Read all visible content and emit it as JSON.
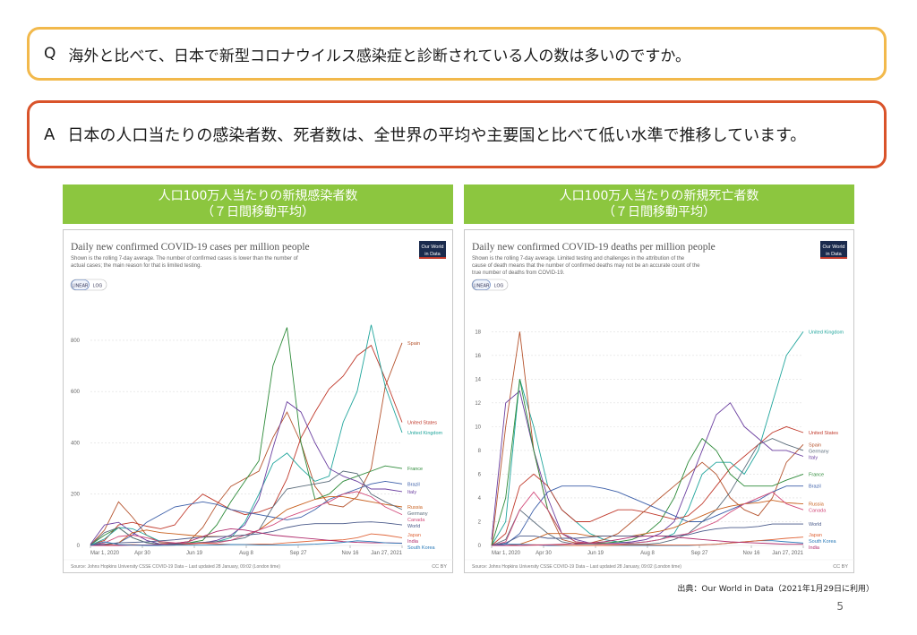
{
  "question": {
    "letter": "Q",
    "text": "海外と比べて、日本で新型コロナウイルス感染症と診断されている人の数は多いのですか。"
  },
  "answer": {
    "letter": "A",
    "text": "日本の人口当たりの感染者数、死者数は、全世界の平均や主要国と比べて低い水準で推移しています。"
  },
  "left_header": {
    "line1": "人口100万人当たりの新規感染者数",
    "line2": "（７日間移動平均）"
  },
  "right_header": {
    "line1": "人口100万人当たりの新規死亡者数",
    "line2": "（７日間移動平均）"
  },
  "source_note": "出典：Our World in Data（2021年1月29日に利用）",
  "page_number": "5",
  "colors": {
    "Spain": "#b5532d",
    "United States": "#c0392b",
    "United Kingdom": "#20a59c",
    "France": "#2e8b3a",
    "Brazil": "#3b5ea8",
    "Italy": "#6b3fa0",
    "Russia": "#c8601e",
    "Germany": "#5a6b7a",
    "Canada": "#d24a7a",
    "World": "#4a5a8a",
    "Japan": "#e0663a",
    "India": "#b02a6b",
    "South Korea": "#2a7ab8"
  },
  "chart_data": [
    {
      "type": "line",
      "title": "Daily new confirmed COVID-19 cases per million people",
      "subtitle": "Shown is the rolling 7-day average. The number of confirmed cases is lower than the number of actual cases; the main reason for that is limited testing.",
      "logo": "Our World in Data",
      "toggle": [
        "LINEAR",
        "LOG"
      ],
      "x_ticks": [
        "Mar 1, 2020",
        "Apr 30",
        "Jun 19",
        "Aug 8",
        "Sep 27",
        "Nov 16",
        "Jan 27, 2021"
      ],
      "y_ticks": [
        "0",
        "200",
        "400",
        "600",
        "800"
      ],
      "ylim": [
        0,
        880
      ],
      "footer": "Source: Johns Hopkins University CSSE COVID-19 Data – Last updated 28 January, 09:02 (London time)",
      "license": "CC BY",
      "x": [
        0,
        15,
        30,
        45,
        60,
        75,
        90,
        105,
        120,
        135,
        150,
        165,
        180,
        195,
        210,
        225,
        240,
        255,
        270,
        285,
        300,
        315,
        333
      ],
      "series": [
        {
          "name": "Spain",
          "values": [
            2,
            60,
            170,
            110,
            40,
            10,
            8,
            15,
            70,
            160,
            230,
            260,
            290,
            420,
            520,
            400,
            230,
            160,
            150,
            190,
            300,
            620,
            790
          ]
        },
        {
          "name": "United States",
          "values": [
            1,
            20,
            80,
            90,
            75,
            65,
            80,
            150,
            200,
            170,
            140,
            120,
            130,
            150,
            260,
            420,
            520,
            610,
            660,
            740,
            780,
            650,
            480
          ]
        },
        {
          "name": "United Kingdom",
          "values": [
            1,
            25,
            70,
            65,
            40,
            15,
            8,
            10,
            12,
            15,
            30,
            90,
            200,
            320,
            360,
            300,
            250,
            270,
            480,
            600,
            860,
            620,
            440
          ]
        },
        {
          "name": "France",
          "values": [
            2,
            40,
            70,
            30,
            10,
            5,
            5,
            10,
            20,
            80,
            170,
            250,
            330,
            700,
            850,
            400,
            180,
            200,
            250,
            270,
            290,
            310,
            300
          ]
        },
        {
          "name": "Brazil",
          "values": [
            0,
            2,
            10,
            40,
            90,
            120,
            150,
            160,
            170,
            160,
            140,
            130,
            120,
            110,
            100,
            110,
            140,
            180,
            200,
            220,
            240,
            250,
            240
          ]
        },
        {
          "name": "Italy",
          "values": [
            5,
            80,
            90,
            50,
            20,
            5,
            3,
            5,
            10,
            20,
            40,
            80,
            180,
            380,
            560,
            520,
            400,
            300,
            270,
            250,
            220,
            220,
            210
          ]
        },
        {
          "name": "Russia",
          "values": [
            0,
            1,
            10,
            50,
            60,
            50,
            45,
            40,
            35,
            35,
            35,
            40,
            60,
            100,
            140,
            160,
            180,
            190,
            190,
            180,
            170,
            160,
            150
          ]
        },
        {
          "name": "Germany",
          "values": [
            1,
            50,
            70,
            30,
            10,
            5,
            5,
            8,
            12,
            15,
            20,
            30,
            60,
            150,
            220,
            230,
            240,
            250,
            290,
            280,
            200,
            170,
            140
          ]
        },
        {
          "name": "Canada",
          "values": [
            0,
            10,
            35,
            40,
            30,
            15,
            10,
            8,
            10,
            10,
            20,
            40,
            60,
            80,
            110,
            130,
            150,
            170,
            200,
            210,
            190,
            150,
            120
          ]
        },
        {
          "name": "World",
          "values": [
            1,
            5,
            10,
            12,
            14,
            18,
            22,
            28,
            32,
            34,
            36,
            40,
            45,
            55,
            70,
            80,
            85,
            85,
            85,
            90,
            92,
            88,
            80
          ]
        },
        {
          "name": "Japan",
          "values": [
            0,
            0,
            2,
            3,
            1,
            0,
            1,
            5,
            8,
            6,
            4,
            4,
            5,
            6,
            10,
            14,
            18,
            20,
            22,
            30,
            45,
            40,
            30
          ]
        },
        {
          "name": "India",
          "values": [
            0,
            0,
            0,
            1,
            2,
            4,
            8,
            15,
            35,
            55,
            65,
            60,
            50,
            40,
            35,
            30,
            25,
            20,
            15,
            12,
            10,
            10,
            9
          ]
        },
        {
          "name": "South Korea",
          "values": [
            0,
            14,
            4,
            1,
            0,
            0,
            1,
            1,
            1,
            2,
            4,
            3,
            2,
            2,
            2,
            3,
            5,
            8,
            12,
            18,
            15,
            10,
            8
          ]
        }
      ]
    },
    {
      "type": "line",
      "title": "Daily new confirmed COVID-19 deaths per million people",
      "subtitle": "Shown is the rolling 7-day average. Limited testing and challenges in the attribution of the cause of death means that the number of confirmed deaths may not be an accurate count of the true number of deaths from COVID-19.",
      "logo": "Our World in Data",
      "toggle": [
        "LINEAR",
        "LOG"
      ],
      "x_ticks": [
        "Mar 1, 2020",
        "Apr 30",
        "Jun 19",
        "Aug 8",
        "Sep 27",
        "Nov 16",
        "Jan 27, 2021"
      ],
      "y_ticks": [
        "0",
        "2",
        "4",
        "6",
        "8",
        "10",
        "12",
        "14",
        "16",
        "18"
      ],
      "ylim": [
        0,
        19
      ],
      "footer": "Source: Johns Hopkins University CSSE COVID-19 Data – Last updated 28 January, 09:02 (London time)",
      "license": "CC BY",
      "x": [
        0,
        15,
        30,
        45,
        60,
        75,
        90,
        105,
        120,
        135,
        150,
        165,
        180,
        195,
        210,
        225,
        240,
        255,
        270,
        285,
        300,
        315,
        333
      ],
      "series": [
        {
          "name": "United Kingdom",
          "values": [
            0,
            2,
            14,
            10,
            5,
            3,
            2,
            1,
            0.5,
            0.3,
            0.2,
            0.3,
            0.5,
            1,
            3,
            6,
            7,
            7,
            6,
            8,
            12,
            16,
            18
          ]
        },
        {
          "name": "United States",
          "values": [
            0,
            1,
            5,
            6,
            5,
            3,
            2,
            2,
            2.5,
            3,
            3,
            2.8,
            2.5,
            2.2,
            2.5,
            3.5,
            5,
            6.5,
            7.5,
            8.5,
            9.5,
            10,
            9.5
          ]
        },
        {
          "name": "Spain",
          "values": [
            0,
            10,
            18,
            8,
            3,
            0.5,
            0.2,
            0.2,
            0.5,
            1,
            2,
            3,
            4,
            5,
            6,
            7,
            6,
            4,
            3,
            2.5,
            4,
            7,
            8.5
          ]
        },
        {
          "name": "Germany",
          "values": [
            0,
            0.5,
            3,
            2,
            1,
            0.3,
            0.1,
            0.1,
            0.1,
            0.1,
            0.1,
            0.1,
            0.2,
            0.5,
            1,
            2,
            3,
            4.5,
            6.5,
            8.5,
            9,
            8.5,
            8
          ]
        },
        {
          "name": "Italy",
          "values": [
            0.5,
            12,
            13,
            8,
            4,
            1,
            0.5,
            0.2,
            0.2,
            0.2,
            0.3,
            0.5,
            1,
            2,
            5,
            8,
            11,
            12,
            10,
            9,
            8,
            8,
            7.5
          ]
        },
        {
          "name": "France",
          "values": [
            0,
            4,
            14,
            8,
            3,
            1,
            0.3,
            0.2,
            0.2,
            0.3,
            0.5,
            1,
            2,
            4,
            7,
            9,
            8,
            6,
            5,
            5,
            5,
            5.5,
            6
          ]
        },
        {
          "name": "Brazil",
          "values": [
            0,
            0.1,
            1,
            3,
            4.5,
            5,
            5,
            5,
            4.8,
            4.5,
            4,
            3.5,
            3,
            2.5,
            2,
            2,
            2.5,
            3,
            3.5,
            3.8,
            4.5,
            5,
            5
          ]
        },
        {
          "name": "Russia",
          "values": [
            0,
            0,
            0.1,
            0.5,
            1,
            1,
            1,
            0.8,
            0.8,
            0.8,
            0.8,
            1,
            1.2,
            1.5,
            2,
            2.5,
            3,
            3.3,
            3.5,
            3.6,
            3.8,
            3.6,
            3.5
          ]
        },
        {
          "name": "Canada",
          "values": [
            0,
            0.3,
            3,
            4.5,
            3,
            1,
            0.3,
            0.2,
            0.1,
            0.1,
            0.2,
            0.3,
            0.5,
            0.8,
            1,
            1.5,
            2,
            2.8,
            3.5,
            4,
            4.5,
            3.5,
            3
          ]
        },
        {
          "name": "World",
          "values": [
            0,
            0.2,
            0.8,
            0.8,
            0.6,
            0.6,
            0.6,
            0.7,
            0.8,
            0.8,
            0.8,
            0.8,
            0.8,
            0.8,
            0.9,
            1.2,
            1.4,
            1.5,
            1.5,
            1.6,
            1.8,
            1.8,
            1.8
          ]
        },
        {
          "name": "South Korea",
          "values": [
            0,
            0.1,
            0.1,
            0.05,
            0,
            0,
            0,
            0,
            0,
            0,
            0,
            0,
            0,
            0,
            0,
            0.05,
            0.1,
            0.2,
            0.3,
            0.4,
            0.4,
            0.3,
            0.2
          ]
        },
        {
          "name": "Japan",
          "values": [
            0,
            0,
            0.01,
            0.05,
            0.05,
            0.02,
            0,
            0,
            0,
            0.02,
            0.05,
            0.05,
            0.04,
            0.03,
            0.03,
            0.05,
            0.1,
            0.2,
            0.3,
            0.4,
            0.5,
            0.6,
            0.7
          ]
        },
        {
          "name": "India",
          "values": [
            0,
            0,
            0,
            0.02,
            0.05,
            0.1,
            0.15,
            0.2,
            0.3,
            0.5,
            0.7,
            0.8,
            0.8,
            0.7,
            0.6,
            0.5,
            0.4,
            0.3,
            0.25,
            0.2,
            0.15,
            0.1,
            0.1
          ]
        }
      ]
    }
  ]
}
